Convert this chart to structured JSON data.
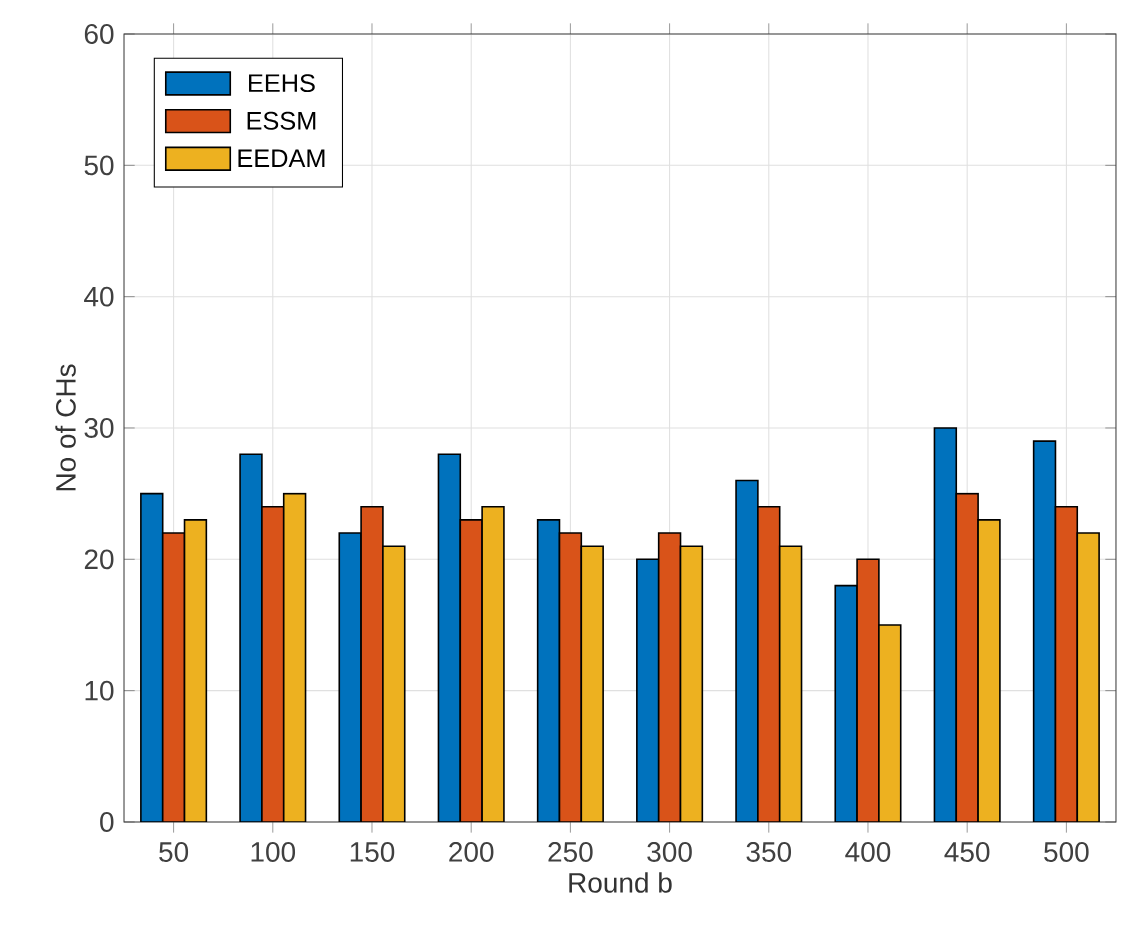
{
  "chart_data": {
    "type": "bar",
    "xlabel": "Round b",
    "ylabel": "No of CHs",
    "categories": [
      "50",
      "100",
      "150",
      "200",
      "250",
      "300",
      "350",
      "400",
      "450",
      "500"
    ],
    "series": [
      {
        "name": "EEHS",
        "color": "#0072bd",
        "values": [
          25,
          28,
          22,
          28,
          23,
          20,
          26,
          18,
          30,
          29
        ]
      },
      {
        "name": "ESSM",
        "color": "#d95319",
        "values": [
          22,
          24,
          24,
          23,
          22,
          22,
          24,
          20,
          25,
          24
        ]
      },
      {
        "name": "EEDAM",
        "color": "#edb120",
        "values": [
          23,
          25,
          21,
          24,
          21,
          21,
          21,
          15,
          23,
          22
        ]
      }
    ],
    "ylim": [
      0,
      60
    ],
    "yticks": [
      0,
      10,
      20,
      30,
      40,
      50,
      60
    ],
    "grid": true,
    "legend": "top left"
  }
}
